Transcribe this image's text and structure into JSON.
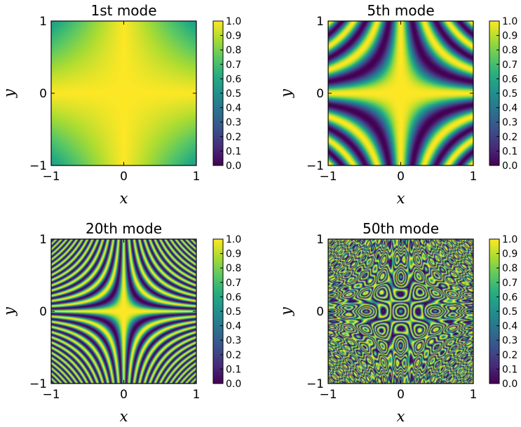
{
  "chart_data": [
    {
      "type": "heatmap",
      "title": "1st mode",
      "xlabel": "x",
      "ylabel": "y",
      "xlim": [
        -1,
        1
      ],
      "ylim": [
        -1,
        1
      ],
      "x_ticks": [
        -1,
        0,
        1
      ],
      "y_ticks": [
        -1,
        0,
        1
      ],
      "x_tick_labels": [
        "−1",
        "0",
        "1"
      ],
      "y_tick_labels": [
        "−1",
        "0",
        "1"
      ],
      "colormap": "viridis",
      "color_range": [
        0.0,
        1.0
      ],
      "colorbar_ticks": [
        "0.0",
        "0.1",
        "0.2",
        "0.3",
        "0.4",
        "0.5",
        "0.6",
        "0.7",
        "0.8",
        "0.9",
        "1.0"
      ],
      "mode_index": 1,
      "pattern": "smooth high plateau (~0.9–1.0) along the axes, falling to ~0.55 at the four corners"
    },
    {
      "type": "heatmap",
      "title": "5th mode",
      "xlabel": "x",
      "ylabel": "y",
      "xlim": [
        -1,
        1
      ],
      "ylim": [
        -1,
        1
      ],
      "x_ticks": [
        -1,
        0,
        1
      ],
      "y_ticks": [
        -1,
        0,
        1
      ],
      "x_tick_labels": [
        "−1",
        "0",
        "1"
      ],
      "y_tick_labels": [
        "−1",
        "0",
        "1"
      ],
      "colormap": "viridis",
      "color_range": [
        0.0,
        1.0
      ],
      "colorbar_ticks": [
        "0.0",
        "0.1",
        "0.2",
        "0.3",
        "0.4",
        "0.5",
        "0.6",
        "0.7",
        "0.8",
        "0.9",
        "1.0"
      ],
      "mode_index": 5,
      "pattern": "hyperbolic fringes around a bright cross along x=0 and y=0 (about 3 bands per quadrant)"
    },
    {
      "type": "heatmap",
      "title": "20th mode",
      "xlabel": "x",
      "ylabel": "y",
      "xlim": [
        -1,
        1
      ],
      "ylim": [
        -1,
        1
      ],
      "x_ticks": [
        -1,
        0,
        1
      ],
      "y_ticks": [
        -1,
        0,
        1
      ],
      "x_tick_labels": [
        "−1",
        "0",
        "1"
      ],
      "y_tick_labels": [
        "−1",
        "0",
        "1"
      ],
      "colormap": "viridis",
      "color_range": [
        0.0,
        1.0
      ],
      "colorbar_ticks": [
        "0.0",
        "0.1",
        "0.2",
        "0.3",
        "0.4",
        "0.5",
        "0.6",
        "0.7",
        "0.8",
        "0.9",
        "1.0"
      ],
      "mode_index": 20,
      "pattern": "dense hyperbolic fringes around a bright central cross, aliasing toward the corners"
    },
    {
      "type": "heatmap",
      "title": "50th mode",
      "xlabel": "x",
      "ylabel": "y",
      "xlim": [
        -1,
        1
      ],
      "ylim": [
        -1,
        1
      ],
      "x_ticks": [
        -1,
        0,
        1
      ],
      "y_ticks": [
        -1,
        0,
        1
      ],
      "x_tick_labels": [
        "−1",
        "0",
        "1"
      ],
      "y_tick_labels": [
        "−1",
        "0",
        "1"
      ],
      "colormap": "viridis",
      "color_range": [
        0.0,
        1.0
      ],
      "colorbar_ticks": [
        "0.0",
        "0.1",
        "0.2",
        "0.3",
        "0.4",
        "0.5",
        "0.6",
        "0.7",
        "0.8",
        "0.9",
        "1.0"
      ],
      "mode_index": 50,
      "pattern": "aliased lattice of concentric ring cells (about 4×4) with bright cross lines between cells"
    }
  ]
}
